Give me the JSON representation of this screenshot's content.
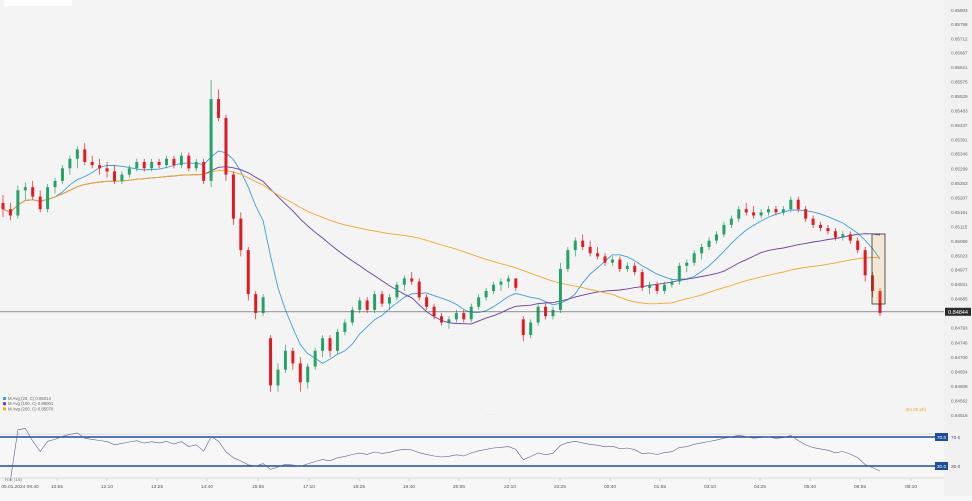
{
  "chart_data": {
    "type": "candlestick",
    "instrument_price_tag": "0.84844",
    "y_ticks": [
      "0.85803",
      "0.85758",
      "0.85712",
      "0.85667",
      "0.85621",
      "0.85575",
      "0.85529",
      "0.85483",
      "0.85437",
      "0.85391",
      "0.85346",
      "0.85299",
      "0.85253",
      "0.85207",
      "0.85161",
      "0.85115",
      "0.85069",
      "0.85023",
      "0.84977",
      "0.84931",
      "0.84885",
      "0.84839",
      "0.84793",
      "0.84746",
      "0.84700",
      "0.84654",
      "0.84608",
      "0.84562",
      "0.84516"
    ],
    "x_ticks": [
      "05.01.2024 09:40",
      "10:55",
      "12:10",
      "13:25",
      "14:40",
      "15:55",
      "17:10",
      "18:25",
      "19:40",
      "20:55",
      "22:10",
      "23:25",
      "00:40",
      "01:55",
      "03:10",
      "04:25",
      "05:40",
      "06:55",
      "08:10"
    ],
    "legend": [
      "M Avg (20, C) 0.85014",
      "M Avg (100, C) 0.85001",
      "M Avg (200, C) 0.85070"
    ],
    "footer_note": "(84.00 ph)",
    "rsi": {
      "label": "RSI (14)",
      "upper": "70.0",
      "lower": "30.0"
    },
    "colors": {
      "up": "#26a269",
      "down": "#e01b24",
      "ma20": "#3aa0d8",
      "ma100": "#6a3fa0",
      "ma200": "#f2a72c",
      "rsi": "#5b5f8f",
      "rsi_band": "#1b4f9c"
    },
    "candles": [
      {
        "o": 0.8519,
        "h": 0.85215,
        "l": 0.85145,
        "c": 0.8517
      },
      {
        "o": 0.8517,
        "h": 0.8519,
        "l": 0.85135,
        "c": 0.8515
      },
      {
        "o": 0.8515,
        "h": 0.85245,
        "l": 0.8514,
        "c": 0.8523
      },
      {
        "o": 0.8523,
        "h": 0.85255,
        "l": 0.852,
        "c": 0.8524
      },
      {
        "o": 0.8524,
        "h": 0.8526,
        "l": 0.852,
        "c": 0.8521
      },
      {
        "o": 0.8521,
        "h": 0.8523,
        "l": 0.8516,
        "c": 0.8517
      },
      {
        "o": 0.8517,
        "h": 0.8525,
        "l": 0.8516,
        "c": 0.8524
      },
      {
        "o": 0.8524,
        "h": 0.8527,
        "l": 0.8522,
        "c": 0.8526
      },
      {
        "o": 0.8526,
        "h": 0.8531,
        "l": 0.8525,
        "c": 0.853
      },
      {
        "o": 0.853,
        "h": 0.8534,
        "l": 0.8528,
        "c": 0.8533
      },
      {
        "o": 0.8533,
        "h": 0.8537,
        "l": 0.853,
        "c": 0.8536
      },
      {
        "o": 0.8536,
        "h": 0.8538,
        "l": 0.8531,
        "c": 0.8532
      },
      {
        "o": 0.8532,
        "h": 0.8534,
        "l": 0.853,
        "c": 0.8531
      },
      {
        "o": 0.8531,
        "h": 0.8533,
        "l": 0.8528,
        "c": 0.853
      },
      {
        "o": 0.853,
        "h": 0.8532,
        "l": 0.8527,
        "c": 0.8529
      },
      {
        "o": 0.8529,
        "h": 0.8531,
        "l": 0.8525,
        "c": 0.8526
      },
      {
        "o": 0.8526,
        "h": 0.8529,
        "l": 0.8525,
        "c": 0.8528
      },
      {
        "o": 0.8528,
        "h": 0.8531,
        "l": 0.8527,
        "c": 0.853
      },
      {
        "o": 0.853,
        "h": 0.8533,
        "l": 0.8529,
        "c": 0.8532
      },
      {
        "o": 0.8532,
        "h": 0.8533,
        "l": 0.8529,
        "c": 0.853
      },
      {
        "o": 0.853,
        "h": 0.8533,
        "l": 0.8529,
        "c": 0.8532
      },
      {
        "o": 0.8532,
        "h": 0.8533,
        "l": 0.853,
        "c": 0.8531
      },
      {
        "o": 0.8531,
        "h": 0.8534,
        "l": 0.853,
        "c": 0.8533
      },
      {
        "o": 0.8533,
        "h": 0.8534,
        "l": 0.853,
        "c": 0.8531
      },
      {
        "o": 0.8531,
        "h": 0.8535,
        "l": 0.853,
        "c": 0.8534
      },
      {
        "o": 0.8534,
        "h": 0.8535,
        "l": 0.8529,
        "c": 0.853
      },
      {
        "o": 0.853,
        "h": 0.8533,
        "l": 0.8529,
        "c": 0.8532
      },
      {
        "o": 0.8532,
        "h": 0.8533,
        "l": 0.8525,
        "c": 0.8526
      },
      {
        "o": 0.8526,
        "h": 0.8558,
        "l": 0.8524,
        "c": 0.8552
      },
      {
        "o": 0.8552,
        "h": 0.8555,
        "l": 0.8545,
        "c": 0.8546
      },
      {
        "o": 0.8546,
        "h": 0.8547,
        "l": 0.8526,
        "c": 0.8528
      },
      {
        "o": 0.8528,
        "h": 0.8529,
        "l": 0.8512,
        "c": 0.8514
      },
      {
        "o": 0.8514,
        "h": 0.8516,
        "l": 0.8502,
        "c": 0.8504
      },
      {
        "o": 0.8504,
        "h": 0.8505,
        "l": 0.8488,
        "c": 0.849
      },
      {
        "o": 0.849,
        "h": 0.8491,
        "l": 0.8482,
        "c": 0.8484
      },
      {
        "o": 0.8484,
        "h": 0.849,
        "l": 0.8483,
        "c": 0.8489
      },
      {
        "o": 0.8476,
        "h": 0.8477,
        "l": 0.8459,
        "c": 0.8461
      },
      {
        "o": 0.8461,
        "h": 0.8468,
        "l": 0.8459,
        "c": 0.8466
      },
      {
        "o": 0.8466,
        "h": 0.8474,
        "l": 0.8465,
        "c": 0.8472
      },
      {
        "o": 0.8472,
        "h": 0.8473,
        "l": 0.8466,
        "c": 0.8468
      },
      {
        "o": 0.8468,
        "h": 0.847,
        "l": 0.8459,
        "c": 0.8462
      },
      {
        "o": 0.8462,
        "h": 0.8468,
        "l": 0.846,
        "c": 0.8467
      },
      {
        "o": 0.8467,
        "h": 0.8473,
        "l": 0.8466,
        "c": 0.8472
      },
      {
        "o": 0.8472,
        "h": 0.8477,
        "l": 0.847,
        "c": 0.8476
      },
      {
        "o": 0.8476,
        "h": 0.8477,
        "l": 0.847,
        "c": 0.8472
      },
      {
        "o": 0.8472,
        "h": 0.8479,
        "l": 0.8471,
        "c": 0.8478
      },
      {
        "o": 0.8478,
        "h": 0.8482,
        "l": 0.8477,
        "c": 0.8481
      },
      {
        "o": 0.8481,
        "h": 0.8486,
        "l": 0.848,
        "c": 0.8485
      },
      {
        "o": 0.8485,
        "h": 0.8489,
        "l": 0.8484,
        "c": 0.8488
      },
      {
        "o": 0.8488,
        "h": 0.8489,
        "l": 0.8484,
        "c": 0.8485
      },
      {
        "o": 0.8485,
        "h": 0.8491,
        "l": 0.8484,
        "c": 0.849
      },
      {
        "o": 0.849,
        "h": 0.8491,
        "l": 0.8486,
        "c": 0.8487
      },
      {
        "o": 0.8487,
        "h": 0.849,
        "l": 0.8485,
        "c": 0.8489
      },
      {
        "o": 0.8489,
        "h": 0.8494,
        "l": 0.8488,
        "c": 0.8493
      },
      {
        "o": 0.8493,
        "h": 0.8496,
        "l": 0.8491,
        "c": 0.8495
      },
      {
        "o": 0.8495,
        "h": 0.8497,
        "l": 0.8493,
        "c": 0.8494
      },
      {
        "o": 0.8494,
        "h": 0.8495,
        "l": 0.8488,
        "c": 0.8489
      },
      {
        "o": 0.8489,
        "h": 0.849,
        "l": 0.8485,
        "c": 0.8486
      },
      {
        "o": 0.8486,
        "h": 0.8487,
        "l": 0.8482,
        "c": 0.8483
      },
      {
        "o": 0.8483,
        "h": 0.8484,
        "l": 0.848,
        "c": 0.8481
      },
      {
        "o": 0.8481,
        "h": 0.8483,
        "l": 0.8479,
        "c": 0.8482
      },
      {
        "o": 0.8482,
        "h": 0.8485,
        "l": 0.8481,
        "c": 0.8484
      },
      {
        "o": 0.8484,
        "h": 0.8485,
        "l": 0.8481,
        "c": 0.8482
      },
      {
        "o": 0.8482,
        "h": 0.8487,
        "l": 0.8481,
        "c": 0.8486
      },
      {
        "o": 0.8486,
        "h": 0.849,
        "l": 0.8485,
        "c": 0.8489
      },
      {
        "o": 0.8489,
        "h": 0.8492,
        "l": 0.8488,
        "c": 0.8491
      },
      {
        "o": 0.8491,
        "h": 0.8494,
        "l": 0.849,
        "c": 0.8493
      },
      {
        "o": 0.8493,
        "h": 0.8495,
        "l": 0.8491,
        "c": 0.8494
      },
      {
        "o": 0.8494,
        "h": 0.8496,
        "l": 0.8492,
        "c": 0.8495
      },
      {
        "o": 0.8495,
        "h": 0.8495,
        "l": 0.8491,
        "c": 0.8492
      },
      {
        "o": 0.8482,
        "h": 0.8483,
        "l": 0.8475,
        "c": 0.8477
      },
      {
        "o": 0.8477,
        "h": 0.8482,
        "l": 0.8476,
        "c": 0.8481
      },
      {
        "o": 0.8481,
        "h": 0.8487,
        "l": 0.848,
        "c": 0.8486
      },
      {
        "o": 0.8486,
        "h": 0.8487,
        "l": 0.8482,
        "c": 0.8483
      },
      {
        "o": 0.8483,
        "h": 0.8486,
        "l": 0.8482,
        "c": 0.8485
      },
      {
        "o": 0.8485,
        "h": 0.85,
        "l": 0.8484,
        "c": 0.8498
      },
      {
        "o": 0.8498,
        "h": 0.8505,
        "l": 0.8497,
        "c": 0.8504
      },
      {
        "o": 0.8504,
        "h": 0.8508,
        "l": 0.8502,
        "c": 0.8507
      },
      {
        "o": 0.8507,
        "h": 0.8509,
        "l": 0.8504,
        "c": 0.8505
      },
      {
        "o": 0.8505,
        "h": 0.8507,
        "l": 0.8502,
        "c": 0.8503
      },
      {
        "o": 0.8503,
        "h": 0.8505,
        "l": 0.8501,
        "c": 0.8502
      },
      {
        "o": 0.8502,
        "h": 0.8503,
        "l": 0.8499,
        "c": 0.85
      },
      {
        "o": 0.85,
        "h": 0.8502,
        "l": 0.8499,
        "c": 0.8501
      },
      {
        "o": 0.8501,
        "h": 0.8502,
        "l": 0.8497,
        "c": 0.8498
      },
      {
        "o": 0.8498,
        "h": 0.85,
        "l": 0.8497,
        "c": 0.8499
      },
      {
        "o": 0.8499,
        "h": 0.85,
        "l": 0.8496,
        "c": 0.8497
      },
      {
        "o": 0.8497,
        "h": 0.8498,
        "l": 0.8491,
        "c": 0.8492
      },
      {
        "o": 0.8492,
        "h": 0.8494,
        "l": 0.849,
        "c": 0.8493
      },
      {
        "o": 0.8493,
        "h": 0.8494,
        "l": 0.849,
        "c": 0.8491
      },
      {
        "o": 0.8491,
        "h": 0.8494,
        "l": 0.849,
        "c": 0.8493
      },
      {
        "o": 0.8493,
        "h": 0.8495,
        "l": 0.8492,
        "c": 0.8494
      },
      {
        "o": 0.8494,
        "h": 0.85,
        "l": 0.8493,
        "c": 0.8499
      },
      {
        "o": 0.8499,
        "h": 0.8501,
        "l": 0.8497,
        "c": 0.85
      },
      {
        "o": 0.85,
        "h": 0.8504,
        "l": 0.8499,
        "c": 0.8503
      },
      {
        "o": 0.8503,
        "h": 0.8506,
        "l": 0.8501,
        "c": 0.8505
      },
      {
        "o": 0.8505,
        "h": 0.8508,
        "l": 0.8504,
        "c": 0.8507
      },
      {
        "o": 0.8507,
        "h": 0.851,
        "l": 0.8506,
        "c": 0.8509
      },
      {
        "o": 0.8509,
        "h": 0.8513,
        "l": 0.8508,
        "c": 0.8512
      },
      {
        "o": 0.8512,
        "h": 0.8515,
        "l": 0.8511,
        "c": 0.8514
      },
      {
        "o": 0.8514,
        "h": 0.8518,
        "l": 0.8513,
        "c": 0.8517
      },
      {
        "o": 0.8517,
        "h": 0.8519,
        "l": 0.8515,
        "c": 0.8516
      },
      {
        "o": 0.8516,
        "h": 0.8518,
        "l": 0.8514,
        "c": 0.8515
      },
      {
        "o": 0.8515,
        "h": 0.8517,
        "l": 0.8514,
        "c": 0.8516
      },
      {
        "o": 0.8516,
        "h": 0.8518,
        "l": 0.8515,
        "c": 0.8517
      },
      {
        "o": 0.8517,
        "h": 0.8518,
        "l": 0.8515,
        "c": 0.8516
      },
      {
        "o": 0.8516,
        "h": 0.8518,
        "l": 0.8515,
        "c": 0.8517
      },
      {
        "o": 0.8517,
        "h": 0.8521,
        "l": 0.8516,
        "c": 0.852
      },
      {
        "o": 0.852,
        "h": 0.8521,
        "l": 0.8516,
        "c": 0.8517
      },
      {
        "o": 0.8517,
        "h": 0.8518,
        "l": 0.8513,
        "c": 0.8514
      },
      {
        "o": 0.8514,
        "h": 0.8515,
        "l": 0.8511,
        "c": 0.8512
      },
      {
        "o": 0.8512,
        "h": 0.8513,
        "l": 0.851,
        "c": 0.8511
      },
      {
        "o": 0.8511,
        "h": 0.8512,
        "l": 0.8509,
        "c": 0.851
      },
      {
        "o": 0.851,
        "h": 0.8511,
        "l": 0.8507,
        "c": 0.8508
      },
      {
        "o": 0.8508,
        "h": 0.851,
        "l": 0.8507,
        "c": 0.8509
      },
      {
        "o": 0.8509,
        "h": 0.851,
        "l": 0.8506,
        "c": 0.8507
      },
      {
        "o": 0.8507,
        "h": 0.8508,
        "l": 0.8503,
        "c": 0.8504
      },
      {
        "o": 0.8504,
        "h": 0.8505,
        "l": 0.8494,
        "c": 0.8496
      },
      {
        "o": 0.8496,
        "h": 0.8497,
        "l": 0.8489,
        "c": 0.8491
      },
      {
        "o": 0.8491,
        "h": 0.8492,
        "l": 0.8483,
        "c": 0.8484
      }
    ]
  }
}
